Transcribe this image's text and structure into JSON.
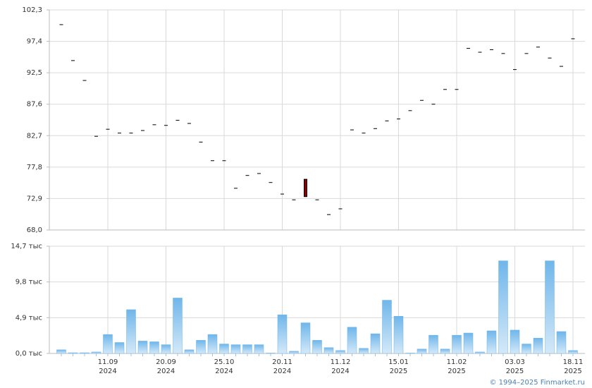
{
  "chart_data": [
    {
      "type": "candlestick",
      "open": [
        100.0,
        94.4,
        91.3,
        82.6,
        83.7,
        83.1,
        83.1,
        83.5,
        84.4,
        84.3,
        85.1,
        84.6,
        81.7,
        78.8,
        78.8,
        74.5,
        76.5,
        76.8,
        75.4,
        73.6,
        72.7,
        75.9,
        72.7,
        70.4,
        71.3,
        83.6,
        83.1,
        83.8,
        85.0,
        85.3,
        86.6,
        88.2,
        87.6,
        89.9,
        89.9,
        96.3,
        95.7,
        96.1,
        95.5,
        93.0,
        95.5,
        96.5,
        94.8,
        93.5,
        97.8
      ],
      "close": [
        100.0,
        94.4,
        91.3,
        82.6,
        83.7,
        83.1,
        83.1,
        83.5,
        84.4,
        84.3,
        85.1,
        84.6,
        81.7,
        78.8,
        78.8,
        74.5,
        76.5,
        76.8,
        75.4,
        73.6,
        72.7,
        73.2,
        72.7,
        70.4,
        71.3,
        83.6,
        83.1,
        83.8,
        85.0,
        85.3,
        86.6,
        88.2,
        87.6,
        89.9,
        89.9,
        96.3,
        95.7,
        96.1,
        95.5,
        93.0,
        95.5,
        96.5,
        94.8,
        93.5,
        97.8
      ],
      "color": "#000000",
      "down_color": "#8b0000",
      "ylim": [
        68.0,
        102.3
      ],
      "yticks": [
        {
          "value": 68.0,
          "label": "68,0"
        },
        {
          "value": 72.9,
          "label": "72,9"
        },
        {
          "value": 77.8,
          "label": "77,8"
        },
        {
          "value": 82.7,
          "label": "82,7"
        },
        {
          "value": 87.6,
          "label": "87,6"
        },
        {
          "value": 92.5,
          "label": "92,5"
        },
        {
          "value": 97.4,
          "label": "97,4"
        },
        {
          "value": 102.3,
          "label": "102,3"
        }
      ],
      "grid": true
    },
    {
      "type": "bar",
      "categories": [
        null,
        null,
        null,
        null,
        [
          "11.09",
          "2024"
        ],
        null,
        null,
        null,
        null,
        [
          "20.09",
          "2024"
        ],
        null,
        null,
        null,
        null,
        [
          "25.10",
          "2024"
        ],
        null,
        null,
        null,
        null,
        [
          "20.11",
          "2024"
        ],
        null,
        null,
        null,
        null,
        [
          "11.12",
          "2024"
        ],
        null,
        null,
        null,
        null,
        [
          "15.01",
          "2025"
        ],
        null,
        null,
        null,
        null,
        [
          "11.02",
          "2025"
        ],
        null,
        null,
        null,
        null,
        [
          "03.03",
          "2025"
        ],
        null,
        null,
        null,
        null,
        [
          "18.11",
          "2025"
        ]
      ],
      "values": [
        0.5,
        0.1,
        0.1,
        0.2,
        2.6,
        1.5,
        6.0,
        1.7,
        1.6,
        1.2,
        7.6,
        0.5,
        1.8,
        2.6,
        1.3,
        1.2,
        1.2,
        1.2,
        0.05,
        5.3,
        0.3,
        4.2,
        1.8,
        0.8,
        0.4,
        3.6,
        0.7,
        2.7,
        7.3,
        5.1,
        0.05,
        0.6,
        2.5,
        0.6,
        2.5,
        2.8,
        0.2,
        3.1,
        12.7,
        3.2,
        1.3,
        2.1,
        12.7,
        3.0,
        0.4
      ],
      "color": "#6fb6ea",
      "ylim": [
        0,
        14.7
      ],
      "yticks": [
        {
          "value": 0,
          "label": "0,0 тыс"
        },
        {
          "value": 4.9,
          "label": "4,9 тыс"
        },
        {
          "value": 9.8,
          "label": "9,8 тыс"
        },
        {
          "value": 14.7,
          "label": "14,7 тыс"
        }
      ],
      "grid": true
    }
  ],
  "source": "© 1994–2025 Finmarket.ru"
}
